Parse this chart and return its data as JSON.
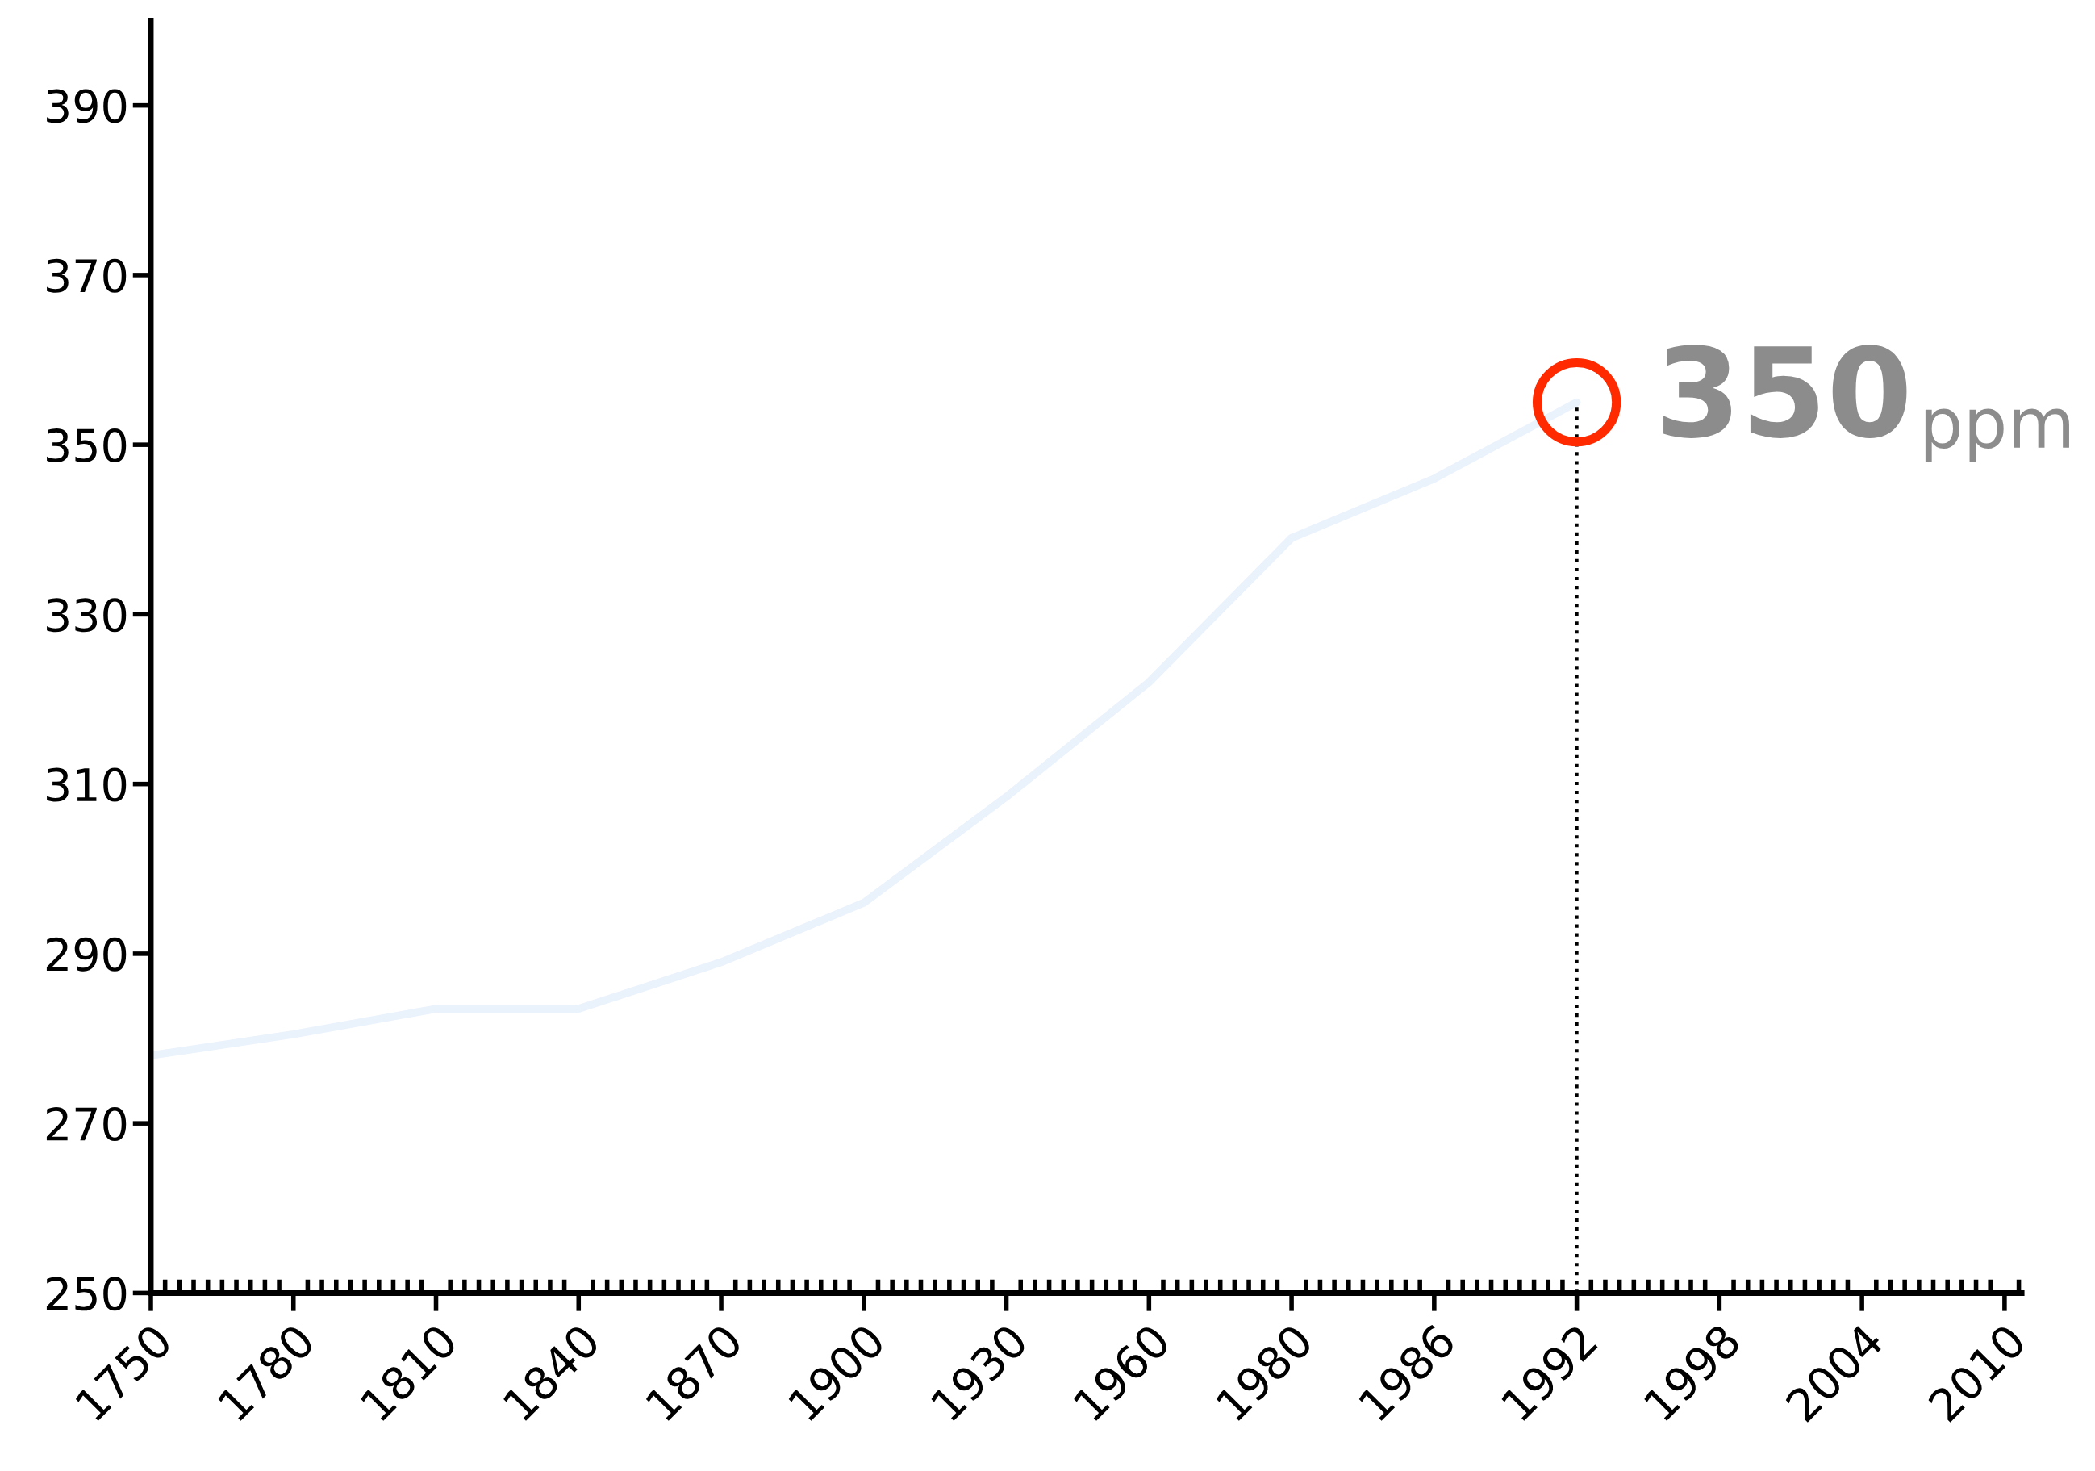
{
  "chart_data": {
    "type": "line",
    "categories": [
      "1750",
      "1780",
      "1810",
      "1840",
      "1870",
      "1900",
      "1930",
      "1960",
      "1980",
      "1986",
      "1992",
      "1998",
      "2004",
      "2010"
    ],
    "series": [
      {
        "color": "#eaf2fc",
        "marker": "none",
        "values": [
          278,
          280.5,
          283.5,
          283.5,
          289,
          296,
          308.5,
          322,
          339,
          346,
          355,
          null,
          null,
          null
        ]
      },
      {
        "type": "scatter",
        "color": "#ff2a00",
        "marker": "circle",
        "values": [
          null,
          null,
          null,
          null,
          null,
          null,
          null,
          null,
          null,
          null,
          355,
          null,
          null,
          null
        ]
      }
    ],
    "ylim": [
      250,
      400
    ],
    "yticks": [
      250,
      270,
      290,
      310,
      330,
      350,
      370,
      390
    ],
    "ref_lines": [
      {
        "axis": "x",
        "value": "1992",
        "color": "#000000",
        "line_style": "dotted"
      }
    ],
    "annotations": [
      "350",
      "ppm"
    ],
    "grid": false,
    "legend": false
  }
}
